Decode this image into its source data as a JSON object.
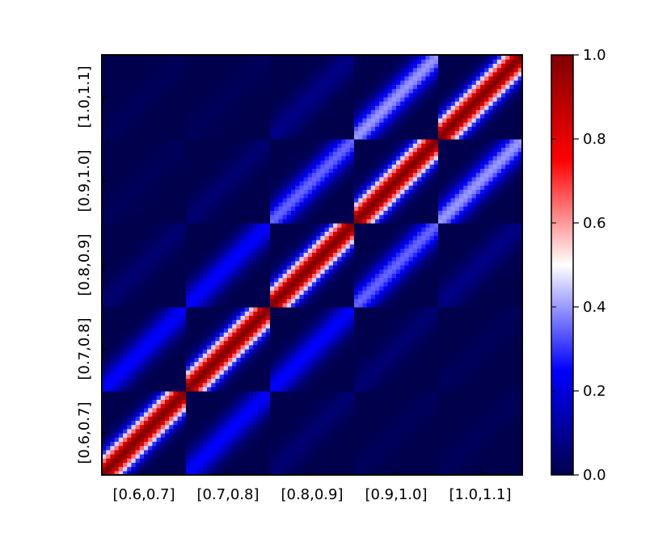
{
  "chart_data": {
    "type": "heatmap",
    "title": "",
    "xlabel": "",
    "ylabel": "",
    "categories": [
      "[0.6,0.7]",
      "[0.7,0.8]",
      "[0.8,0.9]",
      "[0.9,1.0]",
      "[1.0,1.1]"
    ],
    "block_values": [
      [
        1.0,
        0.25,
        0.05,
        0.02,
        0.02
      ],
      [
        0.25,
        1.0,
        0.25,
        0.05,
        0.02
      ],
      [
        0.05,
        0.25,
        1.0,
        0.35,
        0.08
      ],
      [
        0.02,
        0.05,
        0.35,
        1.0,
        0.4
      ],
      [
        0.02,
        0.02,
        0.08,
        0.4,
        1.0
      ]
    ],
    "block_values_note": "approximate peak correlation along each block's diagonal band; rows/cols ordered by categories, row 0 at bottom",
    "colorbar": {
      "ticks": [
        "0.0",
        "0.2",
        "0.4",
        "0.6",
        "0.8",
        "1.0"
      ],
      "vmin": 0.0,
      "vmax": 1.0,
      "colormap": "seismic",
      "colors": [
        "#00004c",
        "#0000ff",
        "#ffffff",
        "#ff0000",
        "#800000"
      ]
    },
    "grid": false
  }
}
